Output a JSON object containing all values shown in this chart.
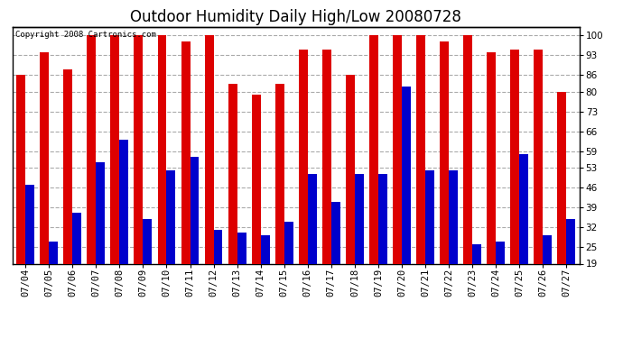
{
  "title": "Outdoor Humidity Daily High/Low 20080728",
  "copyright": "Copyright 2008 Cartronics.com",
  "dates": [
    "07/04",
    "07/05",
    "07/06",
    "07/07",
    "07/08",
    "07/09",
    "07/10",
    "07/11",
    "07/12",
    "07/13",
    "07/14",
    "07/15",
    "07/16",
    "07/17",
    "07/18",
    "07/19",
    "07/20",
    "07/21",
    "07/22",
    "07/23",
    "07/24",
    "07/25",
    "07/26",
    "07/27"
  ],
  "highs": [
    86,
    94,
    88,
    100,
    100,
    100,
    100,
    98,
    100,
    83,
    79,
    83,
    95,
    95,
    86,
    100,
    100,
    100,
    98,
    100,
    94,
    95,
    95,
    80
  ],
  "lows": [
    47,
    27,
    37,
    55,
    63,
    35,
    52,
    57,
    31,
    30,
    29,
    34,
    51,
    41,
    51,
    51,
    82,
    52,
    52,
    26,
    27,
    58,
    29,
    35
  ],
  "bar_color_high": "#dd0000",
  "bar_color_low": "#0000cc",
  "background_color": "#ffffff",
  "plot_bg_color": "#ffffff",
  "grid_color": "#aaaaaa",
  "yticks": [
    19,
    25,
    32,
    39,
    46,
    53,
    59,
    66,
    73,
    80,
    86,
    93,
    100
  ],
  "ymin": 19,
  "ymax": 103,
  "bar_width": 0.38,
  "title_fontsize": 12,
  "tick_fontsize": 7.5,
  "copyright_fontsize": 6.5
}
